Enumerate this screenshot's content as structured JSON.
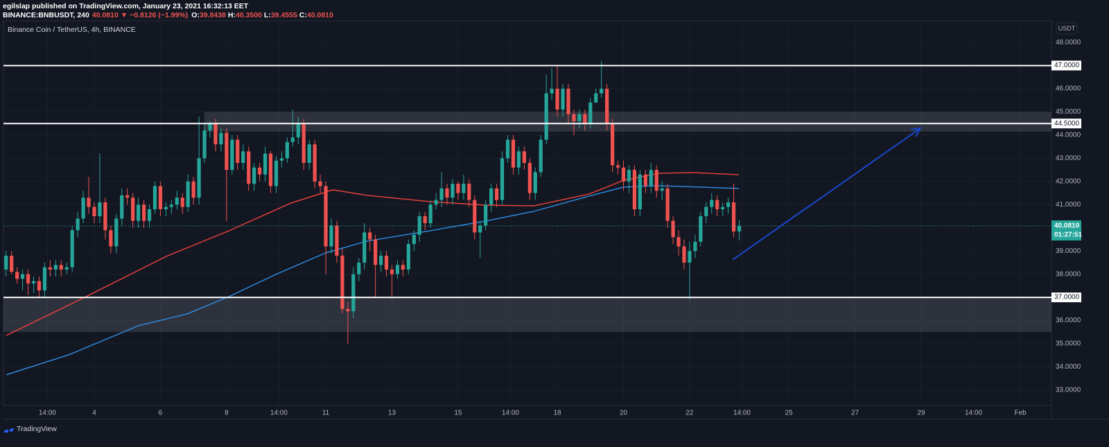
{
  "header": {
    "publisher": "egilslap published on TradingView.com, January 23, 2021 16:32:13 EET",
    "symbol": "BINANCE:BNBUSDT, 240",
    "price": "40.0810",
    "change": "▼ −0.8126 (−1.99%)",
    "ohlc": [
      {
        "label": "O:",
        "value": "39.8438"
      },
      {
        "label": "H:",
        "value": "40.3500"
      },
      {
        "label": "L:",
        "value": "39.4555"
      },
      {
        "label": "C:",
        "value": "40.0810"
      }
    ]
  },
  "footer": {
    "brand": "TradingView"
  },
  "chart_data": {
    "type": "candlestick",
    "title": "Binance Coin / TetherUS, 4h, BINANCE",
    "currency": "USDT",
    "up_color": "#26a69a",
    "down_color": "#ef5350",
    "grid": true,
    "xlim": [
      1.255,
      32.94
    ],
    "ylim": [
      32.34,
      48.93
    ],
    "xticks": [
      {
        "value": 2.583,
        "label": "14:00"
      },
      4,
      6,
      8,
      {
        "value": 9.583,
        "label": "14:00"
      },
      11,
      13,
      15,
      {
        "value": 16.583,
        "label": "14:00"
      },
      18,
      20,
      22,
      {
        "value": 23.583,
        "label": "14:00"
      },
      25,
      27,
      29,
      {
        "value": 30.583,
        "label": "14:00"
      },
      {
        "value": 32,
        "label": "Feb"
      }
    ],
    "yticks": [
      {
        "value": 48,
        "label": "48.0000"
      },
      {
        "value": 46,
        "label": "46.0000"
      },
      {
        "value": 45,
        "label": "45.0000"
      },
      {
        "value": 44,
        "label": "44.0000"
      },
      {
        "value": 43,
        "label": "43.0000"
      },
      {
        "value": 42,
        "label": "42.0000"
      },
      {
        "value": 41,
        "label": "41.0000"
      },
      {
        "value": 39,
        "label": "39.0000"
      },
      {
        "value": 38,
        "label": "38.0000"
      },
      {
        "value": 36,
        "label": "36.0000"
      },
      {
        "value": 35,
        "label": "35.0000"
      },
      {
        "value": 34,
        "label": "34.0000"
      },
      {
        "value": 33,
        "label": "33.0000"
      }
    ],
    "x": [
      1.333,
      1.5,
      1.667,
      1.833,
      2,
      2.167,
      2.333,
      2.5,
      2.667,
      2.833,
      3,
      3.167,
      3.333,
      3.5,
      3.667,
      3.833,
      4,
      4.167,
      4.333,
      4.5,
      4.667,
      4.833,
      5,
      5.167,
      5.333,
      5.5,
      5.667,
      5.833,
      6,
      6.167,
      6.333,
      6.5,
      6.667,
      6.833,
      7,
      7.167,
      7.333,
      7.5,
      7.667,
      7.833,
      8,
      8.167,
      8.333,
      8.5,
      8.667,
      8.833,
      9,
      9.167,
      9.333,
      9.5,
      9.667,
      9.833,
      10,
      10.167,
      10.333,
      10.5,
      10.667,
      10.833,
      11,
      11.167,
      11.333,
      11.5,
      11.667,
      11.833,
      12,
      12.167,
      12.333,
      12.5,
      12.667,
      12.833,
      13,
      13.167,
      13.333,
      13.5,
      13.667,
      13.833,
      14,
      14.167,
      14.333,
      14.5,
      14.667,
      14.833,
      15,
      15.167,
      15.333,
      15.5,
      15.667,
      15.833,
      16,
      16.167,
      16.333,
      16.5,
      16.667,
      16.833,
      17,
      17.167,
      17.333,
      17.5,
      17.667,
      17.833,
      18,
      18.167,
      18.333,
      18.5,
      18.667,
      18.833,
      19,
      19.167,
      19.333,
      19.5,
      19.667,
      19.833,
      20,
      20.167,
      20.333,
      20.5,
      20.667,
      20.833,
      21,
      21.167,
      21.333,
      21.5,
      21.667,
      21.833,
      22,
      22.167,
      22.333,
      22.5,
      22.667,
      22.833,
      23,
      23.167,
      23.333,
      23.5
    ],
    "open": [
      38.2,
      38.8,
      38.1,
      37.8,
      38.0,
      37.6,
      37.7,
      37.3,
      38.3,
      38.2,
      38.4,
      38.2,
      38.3,
      39.9,
      40.4,
      41.3,
      40.9,
      40.5,
      41.1,
      39.9,
      39.2,
      40.4,
      41.4,
      41.3,
      40.3,
      41.0,
      40.3,
      40.8,
      41.8,
      40.8,
      40.9,
      41.0,
      41.3,
      40.9,
      42.0,
      41.3,
      43.0,
      44.2,
      44.5,
      43.6,
      44.1,
      42.5,
      43.8,
      42.8,
      43.3,
      41.9,
      42.6,
      42.3,
      43.2,
      41.8,
      42.9,
      43.0,
      43.7,
      43.9,
      44.5,
      42.8,
      43.6,
      42.0,
      41.8,
      39.2,
      40.1,
      38.8,
      36.5,
      36.4,
      38.0,
      38.5,
      39.8,
      39.5,
      38.4,
      38.8,
      38.2,
      38.0,
      38.4,
      38.2,
      39.3,
      39.7,
      40.5,
      40.2,
      41.0,
      41.2,
      41.7,
      41.3,
      41.9,
      41.5,
      41.9,
      41.2,
      39.8,
      40.1,
      41.0,
      41.7,
      41.2,
      43.0,
      43.8,
      42.6,
      43.3,
      42.8,
      41.5,
      42.4,
      43.8,
      45.8,
      46.0,
      45.1,
      46.0,
      44.9,
      44.6,
      44.9,
      44.5,
      45.4,
      45.8,
      46.0,
      44.5,
      42.7,
      42.6,
      42.0,
      42.5,
      40.8,
      42.3,
      41.8,
      42.5,
      41.6,
      41.7,
      40.3,
      39.6,
      39.2,
      38.5,
      39.0,
      39.4,
      40.5,
      40.9,
      41.2,
      40.8,
      40.9,
      41.1,
      39.8438
    ],
    "high": [
      39.0,
      39.0,
      38.3,
      38.2,
      38.2,
      37.9,
      37.9,
      38.5,
      38.6,
      38.6,
      38.6,
      38.5,
      40.1,
      40.7,
      41.6,
      42.2,
      41.1,
      43.2,
      41.3,
      40.1,
      40.6,
      41.7,
      41.7,
      41.5,
      41.3,
      41.2,
      41.0,
      42.0,
      42.0,
      41.1,
      41.2,
      41.6,
      41.5,
      42.3,
      42.2,
      44.8,
      44.5,
      44.6,
      44.7,
      44.3,
      44.3,
      44.0,
      44.0,
      43.6,
      43.5,
      42.8,
      42.8,
      43.5,
      43.3,
      43.1,
      43.3,
      43.9,
      45.1,
      44.8,
      44.7,
      43.8,
      43.8,
      42.3,
      42.0,
      40.4,
      40.3,
      39.1,
      36.8,
      38.3,
      38.7,
      40.2,
      40.0,
      39.7,
      39.0,
      39.0,
      38.4,
      38.6,
      38.6,
      39.5,
      39.9,
      40.7,
      40.7,
      41.2,
      41.5,
      42.4,
      41.9,
      42.1,
      42.0,
      42.3,
      42.1,
      41.4,
      40.3,
      41.2,
      41.9,
      41.9,
      43.3,
      44.0,
      44.0,
      43.5,
      43.5,
      43.0,
      42.6,
      44.0,
      46.6,
      46.9,
      47.0,
      46.2,
      46.2,
      45.1,
      45.1,
      45.1,
      45.6,
      46.0,
      47.2,
      46.2,
      44.7,
      42.9,
      42.9,
      42.7,
      42.7,
      42.5,
      42.5,
      42.8,
      42.7,
      42.0,
      41.9,
      40.5,
      39.9,
      39.5,
      39.4,
      39.7,
      40.7,
      41.1,
      41.5,
      41.4,
      41.1,
      41.3,
      41.9,
      40.35
    ],
    "low": [
      37.9,
      38.0,
      37.6,
      37.3,
      37.1,
      37.2,
      37.0,
      37.0,
      37.9,
      37.9,
      37.9,
      38.0,
      38.1,
      39.6,
      40.2,
      40.6,
      40.2,
      40.2,
      39.5,
      38.9,
      38.9,
      40.1,
      41.0,
      40.0,
      40.0,
      40.0,
      40.0,
      40.6,
      40.5,
      40.5,
      40.6,
      40.8,
      40.6,
      40.7,
      41.0,
      41.0,
      42.8,
      43.9,
      43.3,
      43.3,
      40.3,
      42.3,
      42.5,
      42.5,
      41.6,
      41.6,
      42.0,
      42.0,
      41.5,
      41.5,
      42.6,
      42.8,
      43.5,
      43.6,
      42.5,
      42.5,
      41.7,
      41.5,
      38.0,
      38.9,
      38.5,
      36.3,
      35.0,
      36.1,
      37.7,
      38.2,
      39.0,
      37.0,
      38.1,
      37.9,
      37.0,
      37.8,
      37.9,
      38.0,
      39.0,
      39.4,
      39.9,
      40.0,
      40.8,
      40.9,
      41.0,
      41.0,
      41.2,
      41.2,
      40.9,
      39.5,
      38.7,
      39.9,
      40.7,
      40.9,
      41.0,
      42.8,
      42.3,
      42.3,
      42.5,
      41.2,
      41.2,
      42.2,
      43.6,
      45.5,
      44.8,
      44.8,
      44.5,
      44.0,
      44.3,
      44.2,
      44.3,
      45.4,
      45.6,
      44.2,
      42.4,
      42.3,
      41.6,
      41.5,
      40.5,
      40.5,
      41.5,
      41.5,
      41.3,
      41.2,
      40.0,
      39.3,
      38.8,
      38.2,
      36.9,
      38.7,
      39.2,
      40.2,
      40.6,
      40.5,
      40.5,
      40.6,
      39.6,
      39.4555
    ],
    "close": [
      38.8,
      38.1,
      37.8,
      38.0,
      37.6,
      37.7,
      37.3,
      38.3,
      38.2,
      38.4,
      38.2,
      38.3,
      39.9,
      40.4,
      41.3,
      40.9,
      40.5,
      41.1,
      39.9,
      39.2,
      40.4,
      41.4,
      41.3,
      40.3,
      41.0,
      40.3,
      40.8,
      41.8,
      40.8,
      40.9,
      41.0,
      41.3,
      40.9,
      42.0,
      41.3,
      43.0,
      44.2,
      44.5,
      43.6,
      44.1,
      42.5,
      43.8,
      42.8,
      43.3,
      41.9,
      42.6,
      42.3,
      43.2,
      41.8,
      42.9,
      43.0,
      43.7,
      43.9,
      44.5,
      42.8,
      43.6,
      42.0,
      41.8,
      39.2,
      40.1,
      38.8,
      36.5,
      36.4,
      38.0,
      38.5,
      39.8,
      39.5,
      38.4,
      38.8,
      38.2,
      38.0,
      38.4,
      38.2,
      39.3,
      39.7,
      40.5,
      40.2,
      41.0,
      41.2,
      41.7,
      41.3,
      41.9,
      41.5,
      41.9,
      41.2,
      39.8,
      40.1,
      41.0,
      41.7,
      41.2,
      43.0,
      43.8,
      42.6,
      43.3,
      42.8,
      41.5,
      42.4,
      43.8,
      45.8,
      46.0,
      45.1,
      46.0,
      44.9,
      44.6,
      44.9,
      44.5,
      45.4,
      45.8,
      46.0,
      44.5,
      42.7,
      42.6,
      42.0,
      42.5,
      40.8,
      42.3,
      41.8,
      42.5,
      41.6,
      41.7,
      40.3,
      39.6,
      39.2,
      38.5,
      39.0,
      39.4,
      40.5,
      40.9,
      41.2,
      40.8,
      40.9,
      41.1,
      39.84,
      40.081
    ],
    "lines": [
      {
        "color": "#f0423c",
        "x": [
          1.339,
          3.665,
          6.179,
          8.065,
          9.951,
          11.209,
          12.256,
          14.142,
          15.819,
          17.286,
          18.962,
          20.01,
          21.058,
          22.106,
          23.489
        ],
        "values": [
          35.36,
          36.97,
          38.77,
          39.87,
          41.07,
          41.64,
          41.4,
          41.13,
          40.98,
          40.95,
          41.46,
          42.05,
          42.35,
          42.38,
          42.29
        ]
      },
      {
        "color": "#2d8fe8",
        "x": [
          1.339,
          3.246,
          5.341,
          6.808,
          8.065,
          9.532,
          10.999,
          12.256,
          14.142,
          15.819,
          17.286,
          18.962,
          20.01,
          21.058,
          23.489
        ],
        "values": [
          33.66,
          34.53,
          35.78,
          36.29,
          37.03,
          38.02,
          38.92,
          39.43,
          39.87,
          40.29,
          40.71,
          41.37,
          41.76,
          41.82,
          41.7
        ]
      }
    ],
    "zones": [
      {
        "x0": 7.33,
        "y": [
          44.15,
          45.0
        ],
        "color": "#787b86"
      },
      {
        "y": [
          35.51,
          37.0
        ],
        "color": "#787b86"
      }
    ],
    "levels": [
      {
        "value": 47,
        "label": "47.0000",
        "color": "#ffffff"
      },
      {
        "value": 44.5,
        "label": "44.5000",
        "color": "#ffffff"
      },
      {
        "value": 37,
        "label": "37.0000",
        "color": "#ffffff"
      }
    ],
    "arrow": {
      "x": [
        23.3,
        28.98
      ],
      "y": [
        38.62,
        44.3
      ],
      "color": "#1848cc"
    },
    "last_price": {
      "value": 40.081,
      "label": "40.0810",
      "color": "#26a69a"
    },
    "countdown": "01:27:51"
  }
}
